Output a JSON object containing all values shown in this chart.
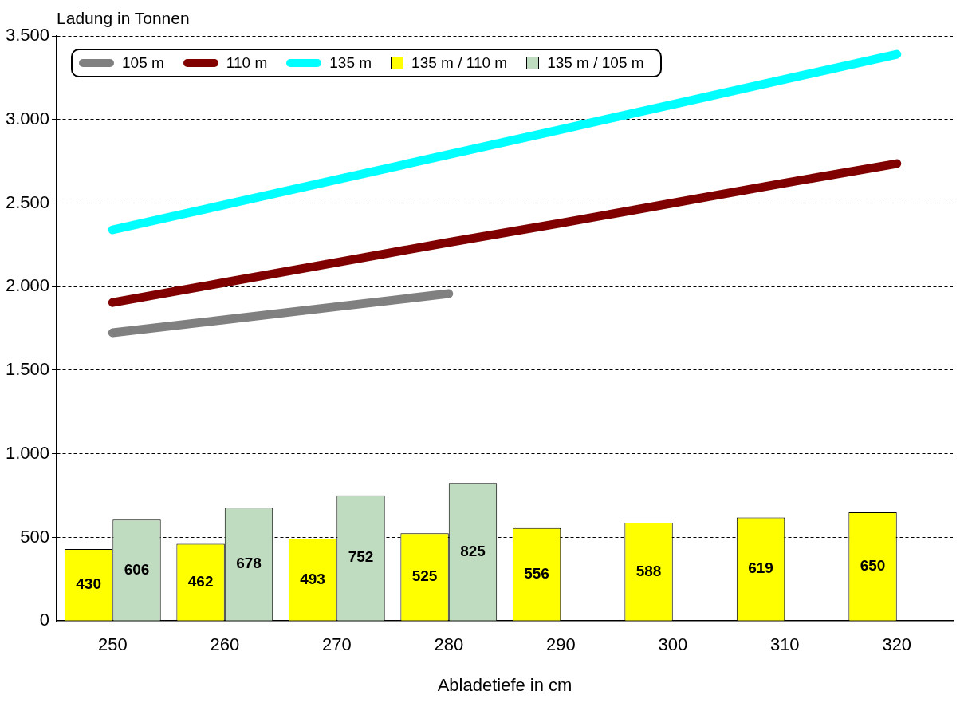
{
  "chart_data": {
    "type": "bar",
    "ylabel": "Ladung in Tonnen",
    "xlabel": "Abladetiefe in cm",
    "categories": [
      "250",
      "260",
      "270",
      "280",
      "290",
      "300",
      "310",
      "320"
    ],
    "series": [
      {
        "name": "105 m",
        "type": "line",
        "color": "#808080",
        "values": [
          1724,
          1802,
          1880,
          1958,
          null,
          null,
          null,
          null
        ]
      },
      {
        "name": "110 m",
        "type": "line",
        "color": "#800000",
        "values": [
          1905,
          2025,
          2145,
          2265,
          2380,
          2500,
          2620,
          2736
        ]
      },
      {
        "name": "135 m",
        "type": "line",
        "color": "#00ffff",
        "values": [
          2340,
          2490,
          2640,
          2790,
          2940,
          3090,
          3240,
          3390
        ]
      },
      {
        "name": "135 m / 110 m",
        "type": "bar",
        "color": "#ffff00",
        "values": [
          430,
          462,
          493,
          525,
          556,
          588,
          619,
          650
        ],
        "value_labels": [
          "430",
          "462",
          "493",
          "525",
          "556",
          "588",
          "619",
          "650"
        ]
      },
      {
        "name": "135 m / 105 m",
        "type": "bar",
        "color": "#c0dcc0",
        "values": [
          606,
          678,
          752,
          825,
          null,
          null,
          null,
          null
        ],
        "value_labels": [
          "606",
          "678",
          "752",
          "825",
          null,
          null,
          null,
          null
        ]
      }
    ],
    "ylim": [
      0,
      3500
    ],
    "yticks": [
      {
        "value": 0,
        "label": "0"
      },
      {
        "value": 500,
        "label": "500"
      },
      {
        "value": 1000,
        "label": "1.000"
      },
      {
        "value": 1500,
        "label": "1.500"
      },
      {
        "value": 2000,
        "label": "2.000"
      },
      {
        "value": 2500,
        "label": "2.500"
      },
      {
        "value": 3000,
        "label": "3.000"
      },
      {
        "value": 3500,
        "label": "3.500"
      }
    ],
    "grid": "y",
    "legend": "top",
    "line_style": "solid",
    "marker": "none"
  }
}
